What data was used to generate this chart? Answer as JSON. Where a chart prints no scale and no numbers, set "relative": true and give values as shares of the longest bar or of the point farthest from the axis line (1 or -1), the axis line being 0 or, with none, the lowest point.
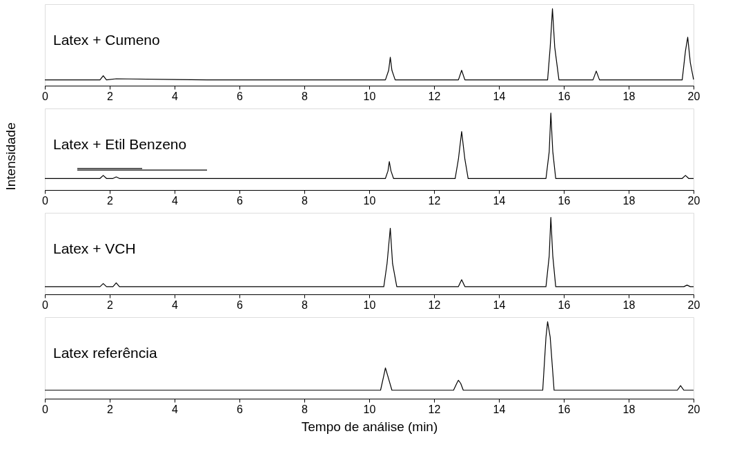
{
  "chart_data": [
    {
      "type": "line",
      "relative": true,
      "annotations": [
        "Latex + Cumeno"
      ],
      "xlim": [
        0,
        20
      ],
      "xticks": [
        0,
        2,
        4,
        6,
        8,
        10,
        12,
        14,
        16,
        18,
        20
      ],
      "grid": false,
      "series": [
        {
          "color": "#000000",
          "x": [
            0,
            1.7,
            1.8,
            1.9,
            2.2,
            5,
            10.5,
            10.6,
            10.65,
            10.7,
            10.8,
            12.75,
            12.85,
            12.95,
            15.5,
            15.58,
            15.65,
            15.72,
            15.85,
            16.9,
            17.0,
            17.1,
            19.65,
            19.75,
            19.82,
            19.9,
            20
          ],
          "values": [
            0.075,
            0.075,
            0.13,
            0.075,
            0.09,
            0.075,
            0.075,
            0.2,
            0.37,
            0.2,
            0.075,
            0.075,
            0.2,
            0.075,
            0.075,
            0.5,
            1,
            0.5,
            0.075,
            0.075,
            0.19,
            0.075,
            0.075,
            0.45,
            0.63,
            0.3,
            0.08
          ]
        }
      ]
    },
    {
      "type": "line",
      "relative": true,
      "ylabel": "Intensidade",
      "annotations": [
        "Latex + Etil Benzeno"
      ],
      "xlim": [
        0,
        20
      ],
      "xticks": [
        0,
        2,
        4,
        6,
        8,
        10,
        12,
        14,
        16,
        18,
        20
      ],
      "grid": false,
      "series": [
        {
          "color": "#000000",
          "x": [
            0,
            1.7,
            1.8,
            1.9,
            2.1,
            2.2,
            2.3,
            5,
            10.5,
            10.58,
            10.62,
            10.67,
            10.75,
            12.65,
            12.75,
            12.85,
            12.95,
            13.05,
            15.45,
            15.55,
            15.6,
            15.66,
            15.75,
            19.65,
            19.75,
            19.85,
            20
          ],
          "values": [
            0.15,
            0.15,
            0.19,
            0.15,
            0.15,
            0.17,
            0.15,
            0.15,
            0.15,
            0.25,
            0.37,
            0.25,
            0.15,
            0.15,
            0.4,
            0.76,
            0.4,
            0.15,
            0.15,
            0.5,
            1,
            0.5,
            0.15,
            0.15,
            0.19,
            0.15,
            0.15
          ]
        },
        {
          "type": "line",
          "color": "#000000",
          "x": [
            1,
            3
          ],
          "values": [
            0.28,
            0.28
          ]
        },
        {
          "type": "line",
          "color": "#000000",
          "x": [
            1,
            5
          ],
          "values": [
            0.26,
            0.26
          ]
        }
      ]
    },
    {
      "type": "line",
      "relative": true,
      "annotations": [
        "Latex + VCH"
      ],
      "xlim": [
        0,
        20
      ],
      "xticks": [
        0,
        2,
        4,
        6,
        8,
        10,
        12,
        14,
        16,
        18,
        20
      ],
      "grid": false,
      "series": [
        {
          "color": "#000000",
          "x": [
            0,
            1.7,
            1.8,
            1.9,
            2.1,
            2.2,
            2.3,
            5,
            10.45,
            10.55,
            10.65,
            10.72,
            10.85,
            12.75,
            12.85,
            12.95,
            15.45,
            15.55,
            15.6,
            15.66,
            15.75,
            19.7,
            19.8,
            19.9,
            20
          ],
          "values": [
            0.1,
            0.1,
            0.14,
            0.1,
            0.1,
            0.15,
            0.1,
            0.1,
            0.1,
            0.4,
            0.86,
            0.4,
            0.1,
            0.1,
            0.19,
            0.1,
            0.1,
            0.5,
            1,
            0.5,
            0.1,
            0.1,
            0.12,
            0.1,
            0.1
          ]
        }
      ]
    },
    {
      "type": "line",
      "relative": true,
      "xlabel": "Tempo de análise (min)",
      "annotations": [
        "Latex referência"
      ],
      "xlim": [
        0,
        20
      ],
      "xticks": [
        0,
        2,
        4,
        6,
        8,
        10,
        12,
        14,
        16,
        18,
        20
      ],
      "grid": false,
      "series": [
        {
          "color": "#000000",
          "x": [
            0,
            5,
            10.35,
            10.45,
            10.5,
            10.57,
            10.7,
            12.6,
            12.7,
            12.75,
            12.82,
            12.9,
            15.35,
            15.45,
            15.5,
            15.58,
            15.7,
            19.5,
            19.6,
            19.7,
            20
          ],
          "values": [
            0.11,
            0.11,
            0.11,
            0.3,
            0.4,
            0.3,
            0.11,
            0.11,
            0.2,
            0.24,
            0.2,
            0.11,
            0.11,
            0.8,
            1,
            0.8,
            0.11,
            0.11,
            0.17,
            0.11,
            0.11
          ]
        }
      ]
    }
  ]
}
